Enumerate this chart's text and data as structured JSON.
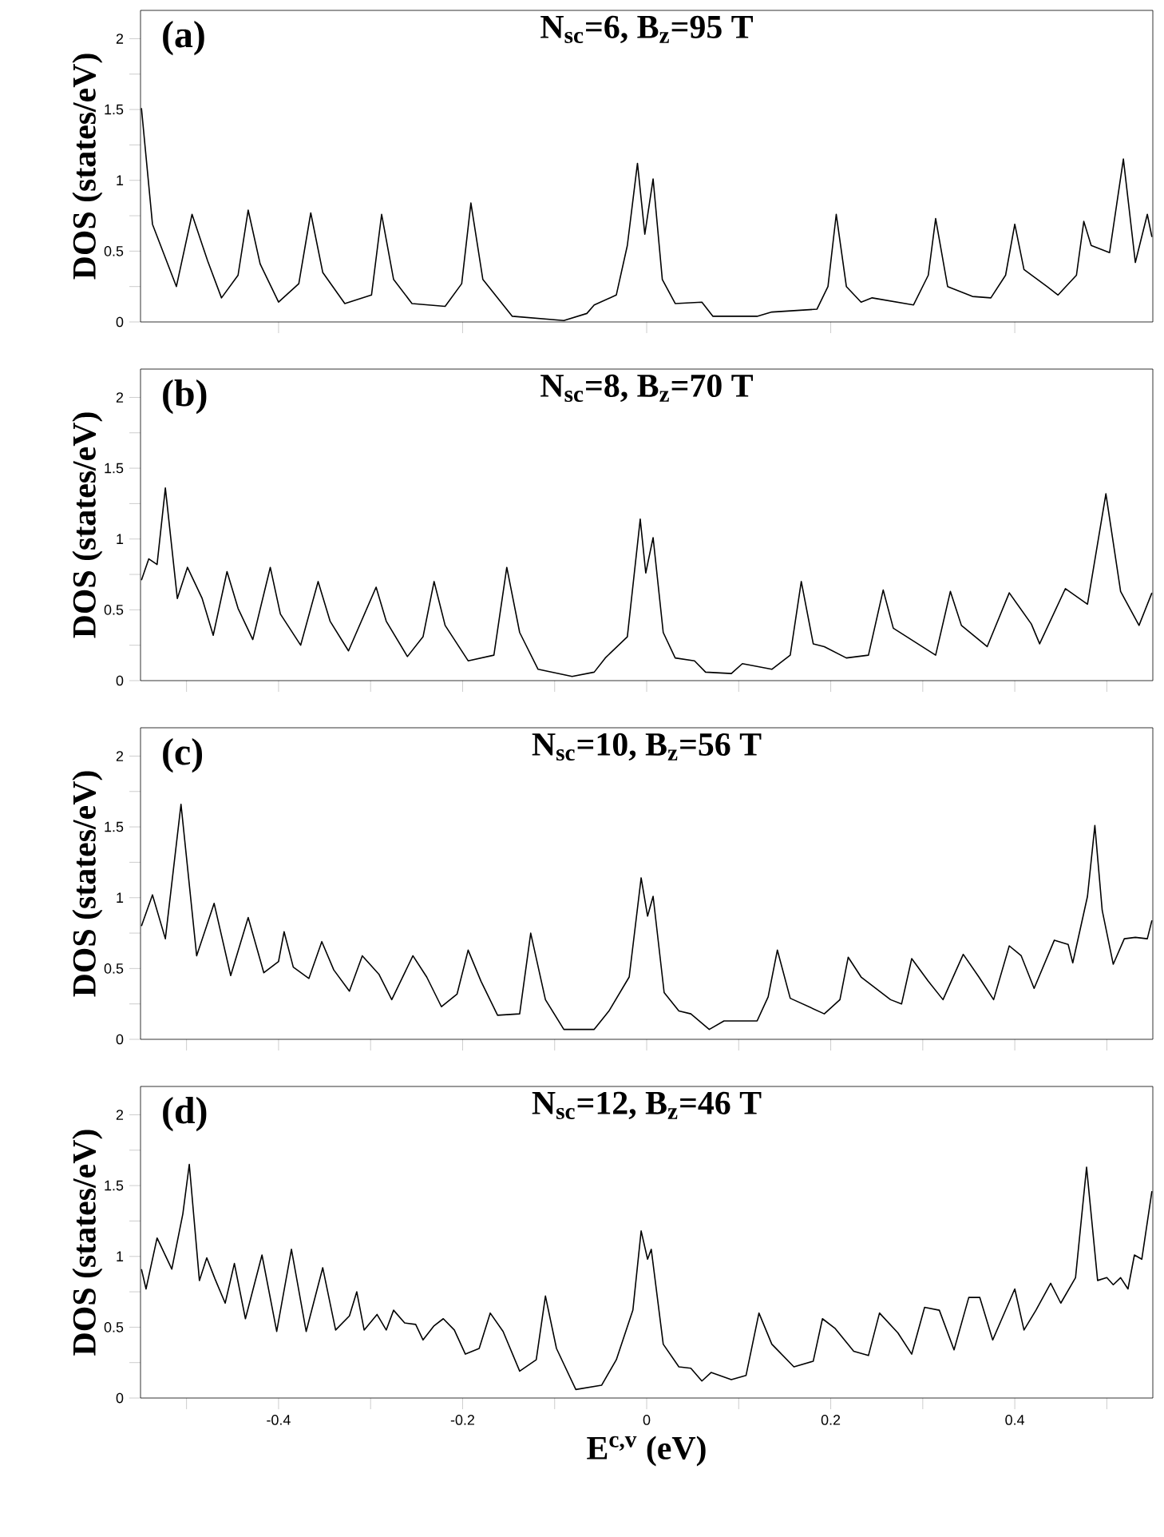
{
  "chart_data": [
    {
      "type": "line",
      "title": "N$_{sc}$=6, B$_{z}$=95 T",
      "ylabel": "DOS (states/eV)",
      "annotations": [
        "(a)"
      ],
      "xlim": [
        -0.55,
        0.55
      ],
      "ylim": [
        0,
        2.2
      ],
      "tick_labels": "y",
      "marker": "none",
      "line_style": "solid",
      "xticks": [
        -0.4,
        -0.2,
        0,
        0.2,
        0.4
      ],
      "yticks": [
        0,
        {
          "value": 0.25,
          "label": null
        },
        0.5,
        {
          "value": 0.75,
          "label": null
        },
        1,
        {
          "value": 1.25,
          "label": null
        },
        1.5,
        {
          "value": 1.75,
          "label": null
        },
        2
      ],
      "series": [
        {
          "color": "#000000",
          "x": [
            -0.549,
            -0.537,
            -0.511,
            -0.494,
            -0.477,
            -0.462,
            -0.444,
            -0.433,
            -0.42,
            -0.4,
            -0.378,
            -0.365,
            -0.352,
            -0.328,
            -0.299,
            -0.288,
            -0.275,
            -0.255,
            -0.219,
            -0.201,
            -0.191,
            -0.178,
            -0.146,
            -0.09,
            -0.065,
            -0.057,
            -0.033,
            -0.021,
            -0.01,
            -0.002,
            0.007,
            0.017,
            0.031,
            0.06,
            0.072,
            0.12,
            0.136,
            0.185,
            0.197,
            0.206,
            0.217,
            0.233,
            0.245,
            0.29,
            0.306,
            0.314,
            0.327,
            0.354,
            0.374,
            0.39,
            0.4,
            0.41,
            0.435,
            0.447,
            0.467,
            0.475,
            0.483,
            0.503,
            0.518,
            0.531,
            0.544,
            0.549
          ],
          "values": [
            1.51,
            0.69,
            0.25,
            0.76,
            0.43,
            0.17,
            0.33,
            0.79,
            0.41,
            0.14,
            0.27,
            0.77,
            0.35,
            0.13,
            0.19,
            0.76,
            0.3,
            0.13,
            0.11,
            0.27,
            0.84,
            0.3,
            0.04,
            0.01,
            0.06,
            0.12,
            0.19,
            0.54,
            1.12,
            0.62,
            1.01,
            0.3,
            0.13,
            0.14,
            0.04,
            0.04,
            0.07,
            0.09,
            0.25,
            0.76,
            0.25,
            0.14,
            0.17,
            0.12,
            0.33,
            0.73,
            0.25,
            0.18,
            0.17,
            0.33,
            0.69,
            0.37,
            0.25,
            0.19,
            0.33,
            0.71,
            0.54,
            0.49,
            1.15,
            0.42,
            0.76,
            0.6
          ]
        }
      ]
    },
    {
      "type": "line",
      "title": "N$_{sc}$=8, B$_{z}$=70 T",
      "ylabel": "DOS (states/eV)",
      "annotations": [
        "(b)"
      ],
      "xlim": [
        -0.55,
        0.55
      ],
      "ylim": [
        0,
        2.2
      ],
      "tick_labels": "y",
      "marker": "none",
      "line_style": "solid",
      "xticks": [
        {
          "value": -0.5,
          "label": null
        },
        -0.4,
        {
          "value": -0.3,
          "label": null
        },
        -0.2,
        {
          "value": -0.1,
          "label": null
        },
        0,
        {
          "value": 0.1,
          "label": null
        },
        0.2,
        {
          "value": 0.3,
          "label": null
        },
        0.4,
        {
          "value": 0.5,
          "label": null
        }
      ],
      "yticks": [
        0,
        {
          "value": 0.25,
          "label": null
        },
        0.5,
        {
          "value": 0.75,
          "label": null
        },
        1,
        {
          "value": 1.25,
          "label": null
        },
        1.5,
        {
          "value": 1.75,
          "label": null
        },
        2
      ],
      "series": [
        {
          "color": "#000000",
          "x": [
            -0.549,
            -0.541,
            -0.532,
            -0.523,
            -0.51,
            -0.499,
            -0.483,
            -0.471,
            -0.456,
            -0.444,
            -0.428,
            -0.409,
            -0.398,
            -0.376,
            -0.357,
            -0.344,
            -0.324,
            -0.294,
            -0.283,
            -0.26,
            -0.243,
            -0.231,
            -0.219,
            -0.194,
            -0.166,
            -0.152,
            -0.138,
            -0.118,
            -0.081,
            -0.057,
            -0.045,
            -0.021,
            -0.007,
            -0.001,
            0.007,
            0.018,
            0.031,
            0.052,
            0.064,
            0.092,
            0.104,
            0.136,
            0.156,
            0.168,
            0.181,
            0.193,
            0.217,
            0.241,
            0.257,
            0.268,
            0.314,
            0.33,
            0.342,
            0.37,
            0.394,
            0.418,
            0.427,
            0.455,
            0.479,
            0.499,
            0.515,
            0.535,
            0.549
          ],
          "values": [
            0.71,
            0.86,
            0.82,
            1.36,
            0.58,
            0.8,
            0.58,
            0.32,
            0.77,
            0.51,
            0.29,
            0.8,
            0.47,
            0.25,
            0.7,
            0.42,
            0.21,
            0.66,
            0.42,
            0.17,
            0.31,
            0.7,
            0.39,
            0.14,
            0.18,
            0.8,
            0.34,
            0.08,
            0.03,
            0.06,
            0.16,
            0.31,
            1.14,
            0.76,
            1.01,
            0.34,
            0.16,
            0.14,
            0.06,
            0.05,
            0.12,
            0.08,
            0.18,
            0.7,
            0.26,
            0.24,
            0.16,
            0.18,
            0.64,
            0.37,
            0.18,
            0.63,
            0.39,
            0.24,
            0.62,
            0.4,
            0.26,
            0.65,
            0.54,
            1.32,
            0.63,
            0.39,
            0.62
          ]
        }
      ]
    },
    {
      "type": "line",
      "title": "N$_{sc}$=10, B$_{z}$=56 T",
      "ylabel": "DOS (states/eV)",
      "annotations": [
        "(c)"
      ],
      "xlim": [
        -0.55,
        0.55
      ],
      "ylim": [
        0,
        2.2
      ],
      "tick_labels": "y",
      "marker": "none",
      "line_style": "solid",
      "xticks": [
        {
          "value": -0.5,
          "label": null
        },
        -0.4,
        {
          "value": -0.3,
          "label": null
        },
        -0.2,
        {
          "value": -0.1,
          "label": null
        },
        0,
        {
          "value": 0.1,
          "label": null
        },
        0.2,
        {
          "value": 0.3,
          "label": null
        },
        0.4,
        {
          "value": 0.5,
          "label": null
        }
      ],
      "yticks": [
        0,
        {
          "value": 0.25,
          "label": null
        },
        0.5,
        {
          "value": 0.75,
          "label": null
        },
        1,
        {
          "value": 1.25,
          "label": null
        },
        1.5,
        {
          "value": 1.75,
          "label": null
        },
        2
      ],
      "series": [
        {
          "color": "#000000",
          "x": [
            -0.549,
            -0.537,
            -0.523,
            -0.506,
            -0.489,
            -0.47,
            -0.452,
            -0.433,
            -0.416,
            -0.4,
            -0.394,
            -0.384,
            -0.367,
            -0.353,
            -0.34,
            -0.323,
            -0.309,
            -0.291,
            -0.277,
            -0.254,
            -0.239,
            -0.223,
            -0.206,
            -0.194,
            -0.18,
            -0.162,
            -0.138,
            -0.126,
            -0.11,
            -0.09,
            -0.057,
            -0.041,
            -0.019,
            -0.006,
            0.001,
            0.007,
            0.019,
            0.035,
            0.048,
            0.068,
            0.084,
            0.12,
            0.132,
            0.142,
            0.156,
            0.193,
            0.21,
            0.219,
            0.233,
            0.265,
            0.277,
            0.288,
            0.306,
            0.322,
            0.344,
            0.361,
            0.377,
            0.394,
            0.407,
            0.421,
            0.443,
            0.458,
            0.463,
            0.479,
            0.487,
            0.495,
            0.507,
            0.519,
            0.531,
            0.544,
            0.549
          ],
          "values": [
            0.8,
            1.02,
            0.71,
            1.66,
            0.59,
            0.96,
            0.45,
            0.86,
            0.47,
            0.55,
            0.76,
            0.51,
            0.43,
            0.69,
            0.49,
            0.34,
            0.59,
            0.46,
            0.28,
            0.59,
            0.44,
            0.23,
            0.32,
            0.63,
            0.41,
            0.17,
            0.18,
            0.75,
            0.28,
            0.07,
            0.07,
            0.2,
            0.44,
            1.14,
            0.87,
            1.01,
            0.33,
            0.2,
            0.18,
            0.07,
            0.13,
            0.13,
            0.3,
            0.63,
            0.29,
            0.18,
            0.28,
            0.58,
            0.44,
            0.28,
            0.25,
            0.57,
            0.41,
            0.28,
            0.6,
            0.44,
            0.28,
            0.66,
            0.59,
            0.36,
            0.7,
            0.67,
            0.54,
            1.01,
            1.51,
            0.91,
            0.53,
            0.71,
            0.72,
            0.71,
            0.84
          ]
        }
      ]
    },
    {
      "type": "line",
      "title": "N$_{sc}$=12, B$_{z}$=46 T",
      "xlabel": "E$^{c,v}$ (eV)",
      "ylabel": "DOS (states/eV)",
      "annotations": [
        "(d)"
      ],
      "xlim": [
        -0.55,
        0.55
      ],
      "ylim": [
        0,
        2.2
      ],
      "marker": "none",
      "line_style": "solid",
      "xticks": [
        {
          "value": -0.5,
          "label": null
        },
        -0.4,
        {
          "value": -0.3,
          "label": null
        },
        -0.2,
        {
          "value": -0.1,
          "label": null
        },
        0,
        {
          "value": 0.1,
          "label": null
        },
        0.2,
        {
          "value": 0.3,
          "label": null
        },
        0.4,
        {
          "value": 0.5,
          "label": null
        }
      ],
      "yticks": [
        0,
        {
          "value": 0.25,
          "label": null
        },
        0.5,
        {
          "value": 0.75,
          "label": null
        },
        1,
        {
          "value": 1.25,
          "label": null
        },
        1.5,
        {
          "value": 1.75,
          "label": null
        },
        2
      ],
      "series": [
        {
          "color": "#000000",
          "x": [
            -0.549,
            -0.544,
            -0.532,
            -0.516,
            -0.504,
            -0.497,
            -0.486,
            -0.478,
            -0.469,
            -0.458,
            -0.448,
            -0.436,
            -0.418,
            -0.402,
            -0.386,
            -0.37,
            -0.352,
            -0.338,
            -0.323,
            -0.315,
            -0.307,
            -0.293,
            -0.283,
            -0.275,
            -0.263,
            -0.251,
            -0.243,
            -0.231,
            -0.221,
            -0.209,
            -0.197,
            -0.182,
            -0.17,
            -0.156,
            -0.138,
            -0.12,
            -0.11,
            -0.098,
            -0.077,
            -0.049,
            -0.033,
            -0.015,
            -0.006,
            0.001,
            0.005,
            0.018,
            0.035,
            0.048,
            0.06,
            0.07,
            0.092,
            0.108,
            0.122,
            0.136,
            0.16,
            0.181,
            0.191,
            0.205,
            0.225,
            0.241,
            0.253,
            0.273,
            0.288,
            0.302,
            0.318,
            0.334,
            0.35,
            0.362,
            0.376,
            0.386,
            0.4,
            0.41,
            0.423,
            0.439,
            0.45,
            0.466,
            0.478,
            0.49,
            0.5,
            0.507,
            0.515,
            0.523,
            0.53,
            0.538,
            0.549
          ],
          "values": [
            0.91,
            0.77,
            1.13,
            0.91,
            1.3,
            1.65,
            0.83,
            0.99,
            0.84,
            0.67,
            0.95,
            0.56,
            1.01,
            0.47,
            1.05,
            0.47,
            0.92,
            0.48,
            0.58,
            0.75,
            0.48,
            0.59,
            0.48,
            0.62,
            0.53,
            0.52,
            0.41,
            0.51,
            0.56,
            0.48,
            0.31,
            0.35,
            0.6,
            0.47,
            0.19,
            0.27,
            0.72,
            0.35,
            0.06,
            0.09,
            0.27,
            0.62,
            1.18,
            0.98,
            1.05,
            0.38,
            0.22,
            0.21,
            0.12,
            0.18,
            0.13,
            0.16,
            0.6,
            0.38,
            0.22,
            0.26,
            0.56,
            0.49,
            0.33,
            0.3,
            0.6,
            0.46,
            0.31,
            0.64,
            0.62,
            0.34,
            0.71,
            0.71,
            0.41,
            0.56,
            0.77,
            0.48,
            0.62,
            0.81,
            0.67,
            0.85,
            1.63,
            0.83,
            0.85,
            0.8,
            0.85,
            0.77,
            1.01,
            0.98,
            1.46
          ]
        }
      ]
    }
  ]
}
